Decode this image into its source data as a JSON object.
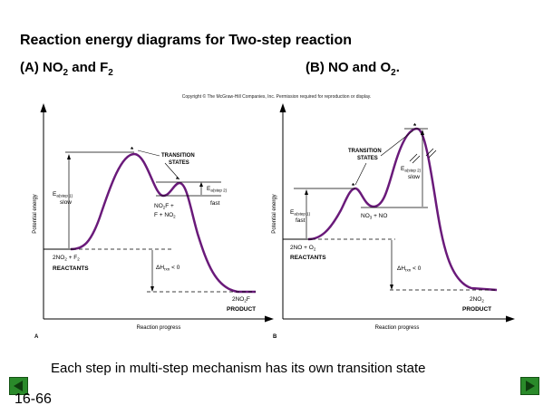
{
  "slide": {
    "title": "Reaction energy diagrams for Two-step reaction",
    "copyright": "Copyright © The McGraw-Hill Companies, Inc. Permission required for reproduction or display.",
    "footer_text": "Each step in multi-step mechanism has its own transition state",
    "slide_number": "16-66"
  },
  "panel_a": {
    "heading_prefix": "(A) NO",
    "heading_sub1": "2",
    "heading_mid": " and F",
    "heading_sub2": "2",
    "y_axis": "Potential energy",
    "x_axis": "Reaction progress",
    "letter": "A",
    "transition_states": "TRANSITION",
    "transition_states2": "STATES",
    "star": "*",
    "ea1": "E",
    "ea1_sub": "a(step 1)",
    "ea1_note": "slow",
    "ea2": "E",
    "ea2_sub": "a(step 2)",
    "ea2_note": "fast",
    "intermediate1": "NO",
    "intermediate1_sub": "2",
    "intermediate1_rest": "F +",
    "intermediate2": "F + NO",
    "intermediate2_sub": "2",
    "reactants_formula": "2NO",
    "reactants_sub1": "2",
    "reactants_mid": " + F",
    "reactants_sub2": "2",
    "reactants_label": "REACTANTS",
    "dh": "ΔH",
    "dh_sub": "rxn",
    "dh_rest": " < 0",
    "product_formula": "2NO",
    "product_sub": "2",
    "product_rest": "F",
    "product_label": "PRODUCT"
  },
  "panel_b": {
    "heading_prefix": "(B) NO and O",
    "heading_sub": "2",
    "heading_suffix": ".",
    "y_axis": "Potential energy",
    "x_axis": "Reaction progress",
    "letter": "B",
    "transition_states": "TRANSITION",
    "transition_states2": "STATES",
    "star": "*",
    "ea1": "E",
    "ea1_sub": "a(step 1)",
    "ea1_note": "fast",
    "ea2": "E",
    "ea2_sub": "a(step 2)",
    "ea2_note": "slow",
    "intermediate": "NO",
    "intermediate_sub": "3",
    "intermediate_rest": " + NO",
    "reactants_formula": "2NO + O",
    "reactants_sub": "2",
    "reactants_label": "REACTANTS",
    "dh": "ΔH",
    "dh_sub": "rxn",
    "dh_rest": " < 0",
    "product_formula": "2NO",
    "product_sub": "2",
    "product_label": "PRODUCT"
  },
  "colors": {
    "curve": "#6a1a7a",
    "nav": "#2a8a2a"
  }
}
